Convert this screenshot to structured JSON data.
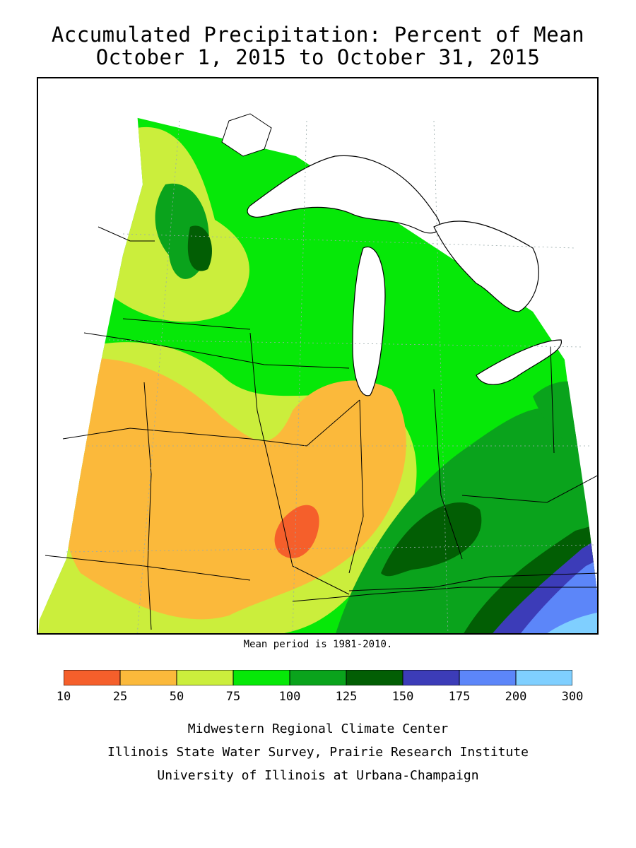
{
  "title": {
    "line1": "Accumulated Precipitation: Percent of Mean",
    "line2": "October 1, 2015 to October 31, 2015"
  },
  "note": "Mean period is 1981-2010.",
  "legend": {
    "bins": [
      {
        "low": "10",
        "high": "25",
        "color": "#f55f2b"
      },
      {
        "low": "25",
        "high": "50",
        "color": "#fbb93b"
      },
      {
        "low": "50",
        "high": "75",
        "color": "#cbee3c"
      },
      {
        "low": "75",
        "high": "100",
        "color": "#06e808"
      },
      {
        "low": "100",
        "high": "125",
        "color": "#0aa31c"
      },
      {
        "low": "125",
        "high": "150",
        "color": "#025e04"
      },
      {
        "low": "150",
        "high": "175",
        "color": "#3c3cb8"
      },
      {
        "low": "175",
        "high": "200",
        "color": "#5c86f9"
      },
      {
        "low": "200",
        "high": "300",
        "color": "#7fcfff"
      }
    ],
    "ticks": [
      "10",
      "25",
      "50",
      "75",
      "100",
      "125",
      "150",
      "175",
      "200",
      "300"
    ]
  },
  "credits": [
    "Midwestern Regional Climate Center",
    "Illinois State Water Survey, Prairie Research Institute",
    "University of Illinois at Urbana-Champaign"
  ]
}
